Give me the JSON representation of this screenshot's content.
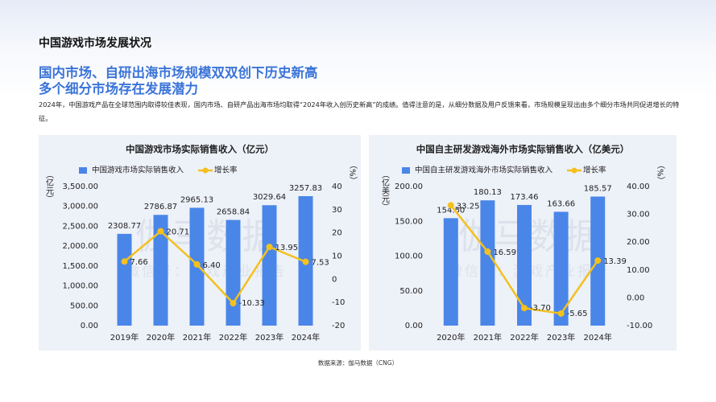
{
  "header": {
    "title": "中国游戏市场发展状况",
    "headline": [
      "国内市场、自研出海市场规模双双创下历史新高",
      "多个细分市场存在发展潜力"
    ],
    "paragraph": "2024年，中国游戏产品在全球范围内取得较佳表现，国内市场、自研产品出海市场均取得“2024年收入创历史新高”的成绩。值得注意的是，从细分数据及用户反馈来看，市场规模呈现出由多个细分市场共同促进增长的特征。"
  },
  "chart_data": [
    {
      "type": "bar-line",
      "title": "中国游戏市场实际销售收入（亿元）",
      "y_label": "（亿元）",
      "y2_label": "（%）",
      "watermark": [
        "伽马数据",
        "微信号：游戏产业报告"
      ],
      "categories": [
        "2019年",
        "2020年",
        "2021年",
        "2022年",
        "2023年",
        "2024年"
      ],
      "series": [
        {
          "name": "中国游戏市场实际销售收入",
          "type": "bar",
          "color": "#4a86e8",
          "values": [
            2308.77,
            2786.87,
            2965.13,
            2658.84,
            3029.64,
            3257.83
          ]
        },
        {
          "name": "增长率",
          "type": "line",
          "axis": "y2",
          "color": "#f4c01e",
          "values": [
            7.66,
            20.71,
            6.4,
            -10.33,
            13.95,
            7.53
          ],
          "value_labels": [
            "7.66",
            "20.71",
            "6.40",
            "-10.33",
            "13.95",
            "7.53"
          ]
        }
      ],
      "ylim": [
        0,
        3500
      ],
      "yticks": [
        {
          "value": 0,
          "label": "0.00"
        },
        {
          "value": 500,
          "label": "500.00"
        },
        {
          "value": 1000,
          "label": "1,000.00"
        },
        {
          "value": 1500,
          "label": "1,500.00"
        },
        {
          "value": 2000,
          "label": "2,000.00"
        },
        {
          "value": 2500,
          "label": "2,500.00"
        },
        {
          "value": 3000,
          "label": "3,000.00"
        },
        {
          "value": 3500,
          "label": "3,500.00"
        }
      ],
      "y2lim": [
        -20,
        40
      ],
      "y2ticks": [
        -20,
        -10,
        0,
        10,
        20,
        30,
        40
      ]
    },
    {
      "type": "bar-line",
      "title": "中国自主研发游戏海外市场实际销售收入（亿美元）",
      "y_label": "（亿美元）",
      "y2_label": "（%）",
      "watermark": [
        "伽马数据",
        "微信号：游戏产业报告"
      ],
      "categories": [
        "2020年",
        "2021年",
        "2022年",
        "2023年",
        "2024年"
      ],
      "series": [
        {
          "name": "中国自主研发游戏海外市场实际销售收入",
          "type": "bar",
          "color": "#4a86e8",
          "values": [
            154.5,
            180.13,
            173.46,
            163.66,
            185.57
          ],
          "value_labels": [
            "154.50",
            "180.13",
            "173.46",
            "163.66",
            "185.57"
          ]
        },
        {
          "name": "增长率",
          "type": "line",
          "axis": "y2",
          "color": "#f4c01e",
          "values": [
            33.25,
            16.59,
            -3.7,
            -5.65,
            13.39
          ],
          "value_labels": [
            "33.25",
            "16.59",
            "-3.70",
            "-5.65",
            "13.39"
          ]
        }
      ],
      "ylim": [
        0,
        200
      ],
      "yticks": [
        {
          "value": 0,
          "label": "0.00"
        },
        {
          "value": 50,
          "label": "50.00"
        },
        {
          "value": 100,
          "label": "100.00"
        },
        {
          "value": 150,
          "label": "150.00"
        },
        {
          "value": 200,
          "label": "200.00"
        }
      ],
      "y2lim": [
        -10,
        40
      ],
      "y2ticks": [
        {
          "value": -10,
          "label": "-10.00"
        },
        {
          "value": 0,
          "label": "0.00"
        },
        {
          "value": 10,
          "label": "10.00"
        },
        {
          "value": 20,
          "label": "20.00"
        },
        {
          "value": 30,
          "label": "30.00"
        },
        {
          "value": 40,
          "label": "40.00"
        }
      ]
    }
  ],
  "source": "数据来源：伽马数据（CNG）"
}
